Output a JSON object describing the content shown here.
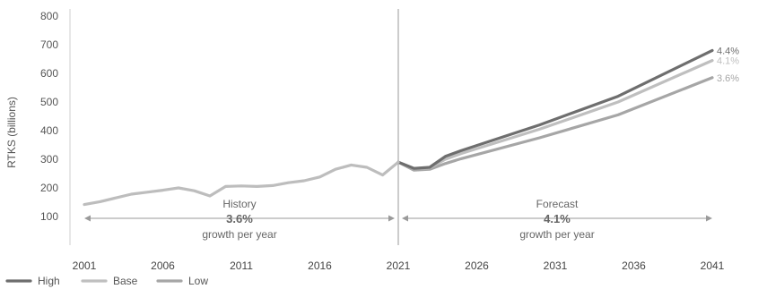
{
  "chart_data": {
    "type": "line",
    "title": "",
    "xlabel": "",
    "ylabel": "RTKS (billions)",
    "xlim": [
      2001,
      2041
    ],
    "ylim": [
      0,
      800
    ],
    "yticks": [
      100,
      200,
      300,
      400,
      500,
      600,
      700,
      800
    ],
    "xticks": [
      2001,
      2006,
      2011,
      2016,
      2021,
      2026,
      2031,
      2036,
      2041
    ],
    "grid": false,
    "legend_position": "bottom-left",
    "divider_year": 2021,
    "series": [
      {
        "name": "History",
        "role": "history",
        "x": [
          2001,
          2002,
          2003,
          2004,
          2005,
          2006,
          2007,
          2008,
          2009,
          2010,
          2011,
          2012,
          2013,
          2014,
          2015,
          2016,
          2017,
          2018,
          2019,
          2020,
          2021
        ],
        "values": [
          142,
          152,
          165,
          178,
          185,
          192,
          200,
          190,
          172,
          205,
          207,
          205,
          208,
          218,
          225,
          238,
          265,
          280,
          272,
          245,
          290
        ]
      },
      {
        "name": "High",
        "role": "forecast",
        "color": "#6e6e6e",
        "growth_label": "4.4%",
        "x": [
          2021,
          2022,
          2023,
          2024,
          2025,
          2030,
          2035,
          2041
        ],
        "values": [
          290,
          268,
          272,
          310,
          330,
          420,
          520,
          680
        ]
      },
      {
        "name": "Base",
        "role": "forecast",
        "color": "#bfbfbf",
        "growth_label": "4.1%",
        "x": [
          2021,
          2022,
          2023,
          2024,
          2025,
          2030,
          2035,
          2041
        ],
        "values": [
          290,
          268,
          270,
          300,
          320,
          405,
          500,
          645
        ]
      },
      {
        "name": "Low",
        "role": "forecast",
        "color": "#a6a6a6",
        "growth_label": "3.6%",
        "x": [
          2021,
          2022,
          2023,
          2024,
          2025,
          2030,
          2035,
          2041
        ],
        "values": [
          290,
          262,
          265,
          285,
          302,
          375,
          455,
          585
        ]
      }
    ],
    "annotations": [
      {
        "label": "History",
        "rate": "3.6%",
        "note": "growth per year",
        "from": 2001,
        "to": 2021
      },
      {
        "label": "Forecast",
        "rate": "4.1%",
        "note": "growth per year",
        "from": 2021,
        "to": 2041
      }
    ],
    "legend": [
      {
        "name": "High",
        "color": "#6e6e6e"
      },
      {
        "name": "Base",
        "color": "#bfbfbf"
      },
      {
        "name": "Low",
        "color": "#a6a6a6"
      }
    ]
  }
}
